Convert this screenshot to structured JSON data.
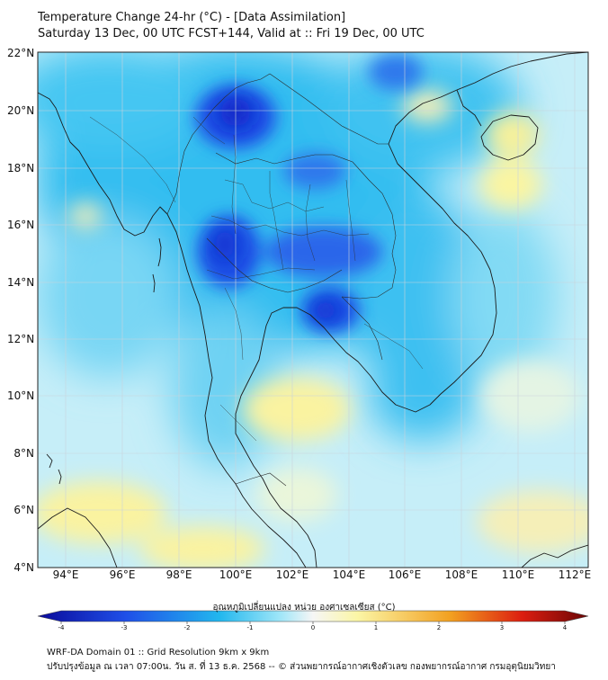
{
  "header": {
    "title": "Temperature Change 24-hr (°C) - [Data Assimilation]",
    "subtitle": "Saturday 13 Dec, 00 UTC FCST+144, Valid at :: Fri 19 Dec, 00 UTC"
  },
  "map": {
    "variable": "24-hr temperature change (°C)",
    "lat_range": [
      4,
      22
    ],
    "lon_range": [
      93,
      112.5
    ],
    "lat_labels": [
      "22°N",
      "20°N",
      "18°N",
      "16°N",
      "14°N",
      "12°N",
      "10°N",
      "8°N",
      "6°N",
      "4°N"
    ],
    "lon_labels": [
      "94°E",
      "96°E",
      "98°E",
      "100°E",
      "102°E",
      "104°E",
      "106°E",
      "108°E",
      "110°E",
      "112°E"
    ],
    "cold_spots": [
      {
        "lat": 19.8,
        "lon": 100.0,
        "value": -3.0
      },
      {
        "lat": 15.1,
        "lon": 99.5,
        "value": -2.7
      },
      {
        "lat": 15.2,
        "lon": 102.5,
        "value": -2.3
      },
      {
        "lat": 13.0,
        "lon": 103.2,
        "value": -2.8
      },
      {
        "lat": 17.8,
        "lon": 103.0,
        "value": -1.8
      },
      {
        "lat": 21.0,
        "lon": 106.5,
        "value": -1.6
      }
    ],
    "warm_spots": [
      {
        "lat": 19.2,
        "lon": 110.2,
        "value": 0.8
      },
      {
        "lat": 17.4,
        "lon": 110.0,
        "value": 0.7
      },
      {
        "lat": 9.4,
        "lon": 102.0,
        "value": 0.8
      },
      {
        "lat": 6.2,
        "lon": 95.5,
        "value": 0.6
      },
      {
        "lat": 4.8,
        "lon": 98.8,
        "value": 0.7
      },
      {
        "lat": 20.4,
        "lon": 107.6,
        "value": 0.4
      },
      {
        "lat": 5.5,
        "lon": 109.0,
        "value": 0.5
      }
    ]
  },
  "colorbar": {
    "title": "อุณหภูมิเปลี่ยนแปลง หน่วย องศาเซลเซียส (°C)",
    "min": -4,
    "max": 4,
    "ticks": [
      "-4",
      "-3",
      "-2",
      "-1",
      "0",
      "1",
      "2",
      "3",
      "4"
    ],
    "colors": {
      "deep_blue": "#0a0a9a",
      "blue": "#1f4fe8",
      "cyan": "#22b7ee",
      "light_cyan": "#9fe6f8",
      "white": "#f6f6f6",
      "light_yellow": "#fbf6a6",
      "orange": "#f2a020",
      "red": "#dc1e10",
      "dark_red": "#6a0505"
    }
  },
  "footer": {
    "line1": "WRF-DA Domain 01 :: Grid Resolution 9km x 9km",
    "line2": "ปรับปรุงข้อมูล ณ เวลา 07:00น. วัน ส. ที่ 13 ธ.ค. 2568 -- © ส่วนพยากรณ์อากาศเชิงตัวเลข กองพยากรณ์อากาศ กรมอุตุนิยมวิทยา"
  }
}
